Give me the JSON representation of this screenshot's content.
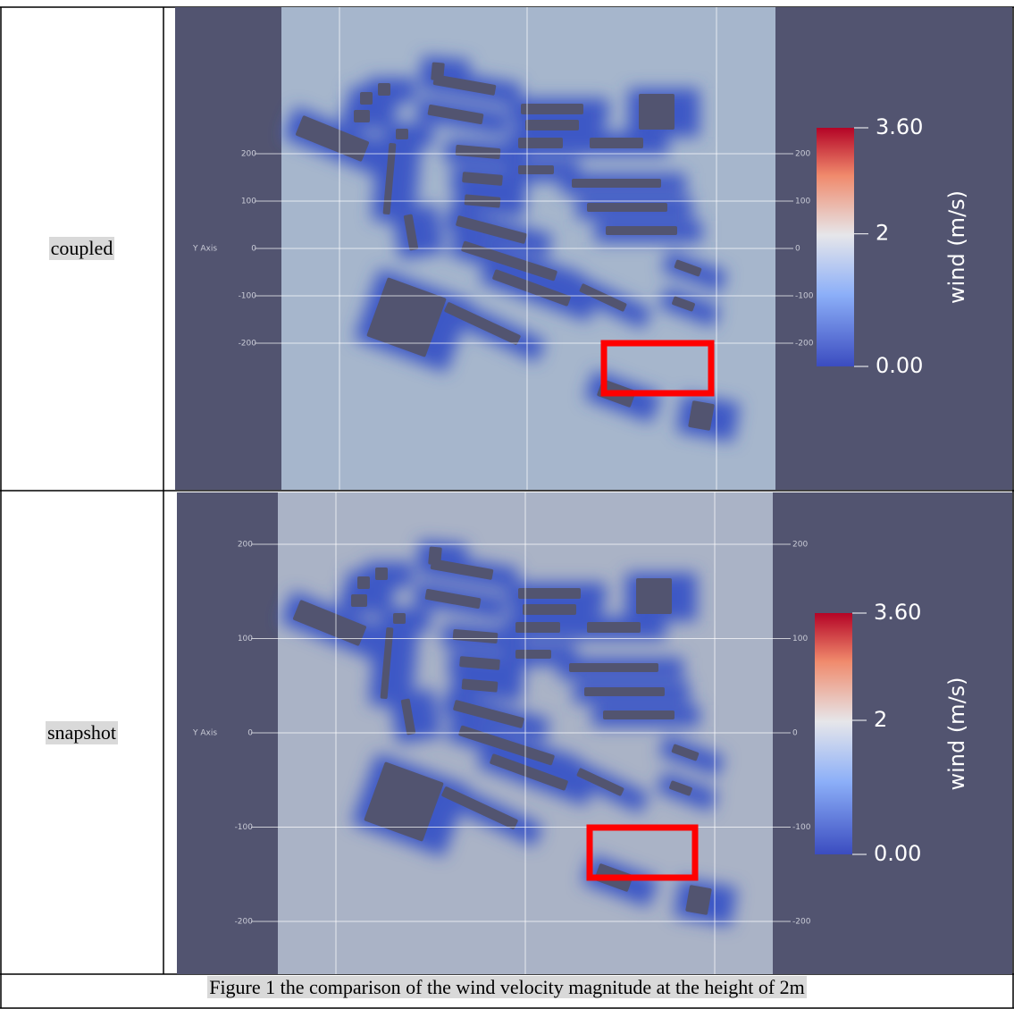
{
  "table": {
    "rows": [
      {
        "label": "coupled",
        "plot": {
          "axis_label": "Y Axis",
          "yticks": [
            200,
            100,
            0,
            -100,
            -200
          ],
          "colorbar": {
            "label": "wind (m/s)",
            "ticks": [
              {
                "value": 3.6,
                "label": "3.60"
              },
              2,
              {
                "value": 0,
                "label": "0.00"
              }
            ]
          }
        }
      },
      {
        "label": "snapshot",
        "plot": {
          "axis_label": "Y Axis",
          "yticks": [
            200,
            100,
            0,
            -100,
            -200
          ],
          "colorbar": {
            "label": "wind (m/s)",
            "ticks": [
              {
                "value": 3.6,
                "label": "3.60"
              },
              2,
              {
                "value": 0,
                "label": "0.00"
              }
            ]
          }
        }
      }
    ]
  },
  "caption": "Figure 1 the comparison of the wind velocity magnitude at the height of 2m"
}
